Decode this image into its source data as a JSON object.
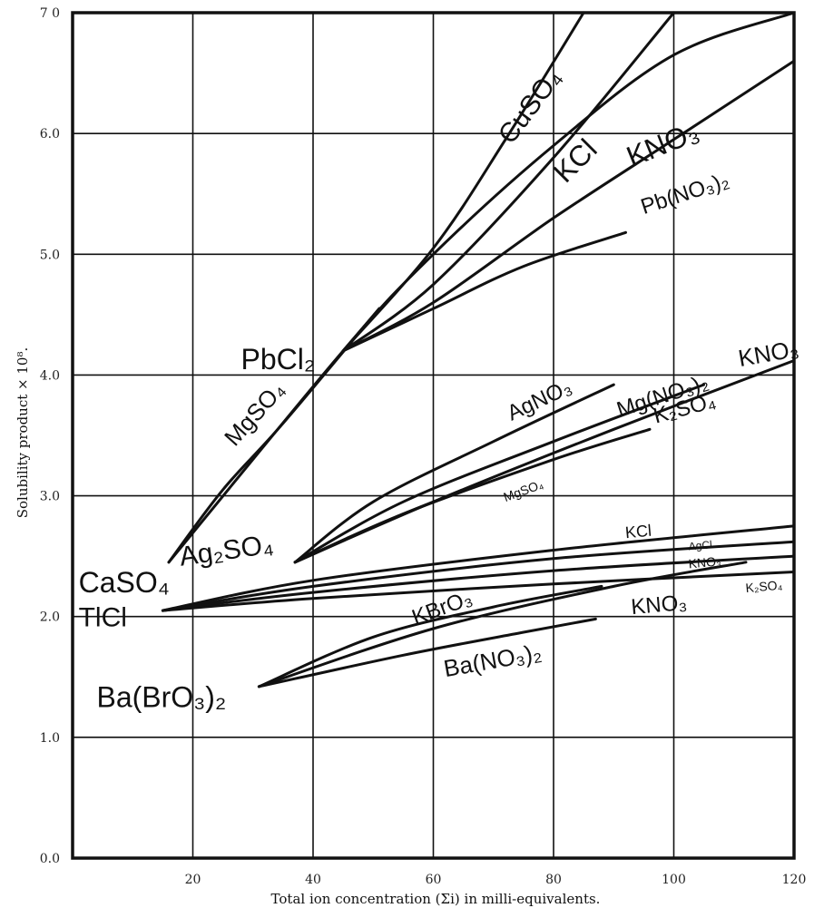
{
  "chart_data": {
    "type": "line",
    "title": "",
    "xlabel": "Total ion concentration (Σi) in milli-equivalents.",
    "ylabel": "Solubility product × 10⁸.",
    "xlim": [
      0,
      120
    ],
    "ylim": [
      0.0,
      7.0
    ],
    "x_ticks": [
      "20",
      "40",
      "60",
      "80",
      "100",
      "120"
    ],
    "x_tick_values": [
      20,
      40,
      60,
      80,
      100,
      120
    ],
    "y_ticks": [
      "0.0",
      "1.0",
      "2.0",
      "3.0",
      "4.0",
      "5.0",
      "6.0",
      "7 0"
    ],
    "y_tick_values": [
      0,
      1,
      2,
      3,
      4,
      5,
      6,
      7
    ],
    "grid": true,
    "groups": [
      {
        "name": "PbCl₂",
        "series": [
          {
            "name": "CuSO₄",
            "x": [
              45,
              60,
              72,
              85
            ],
            "y": [
              4.2,
              5.05,
              5.95,
              7.0
            ]
          },
          {
            "name": "KCl",
            "x": [
              45,
              60,
              80,
              100
            ],
            "y": [
              4.2,
              4.75,
              5.8,
              7.0
            ]
          },
          {
            "name": "KNO₃",
            "x": [
              45,
              60,
              80,
              100,
              120
            ],
            "y": [
              4.2,
              4.6,
              5.3,
              5.95,
              6.6
            ]
          },
          {
            "name": "Pb(NO₃)₂",
            "x": [
              45,
              60,
              75,
              92
            ],
            "y": [
              4.2,
              4.55,
              4.9,
              5.18
            ]
          },
          {
            "name": "MgSO₄",
            "x": [
              45,
              51
            ],
            "y": [
              4.2,
              4.55
            ]
          }
        ]
      },
      {
        "name": "CaSO₄",
        "series": [
          {
            "name": "MgSO₄",
            "x": [
              16,
              25,
              35,
              51
            ],
            "y": [
              2.45,
              3.05,
              3.6,
              4.55
            ]
          },
          {
            "name": "KNO₃",
            "x": [
              16,
              45,
              60,
              80,
              100,
              120
            ],
            "y": [
              2.45,
              4.2,
              5.0,
              5.9,
              6.65,
              7.0
            ]
          }
        ]
      },
      {
        "name": "Ag₂SO₄",
        "series": [
          {
            "name": "AgNO₃",
            "x": [
              37,
              50,
              70,
              90
            ],
            "y": [
              2.45,
              2.95,
              3.45,
              3.92
            ]
          },
          {
            "name": "Mg(NO₃)₂",
            "x": [
              37,
              55,
              80,
              105
            ],
            "y": [
              2.45,
              2.95,
              3.45,
              3.92
            ]
          },
          {
            "name": "KNO₃",
            "x": [
              37,
              60,
              90,
              120
            ],
            "y": [
              2.45,
              2.95,
              3.55,
              4.12
            ]
          },
          {
            "name": "K₂SO₄",
            "x": [
              37,
              55,
              80,
              96
            ],
            "y": [
              2.45,
              2.85,
              3.3,
              3.55
            ]
          },
          {
            "name": "MgSO₄",
            "x": [
              37,
              55,
              68
            ],
            "y": [
              2.45,
              2.85,
              3.1
            ]
          }
        ]
      },
      {
        "name": "TlCl",
        "series": [
          {
            "name": "KCl",
            "x": [
              15,
              40,
              80,
              120
            ],
            "y": [
              2.05,
              2.3,
              2.55,
              2.75
            ]
          },
          {
            "name": "AgCl",
            "x": [
              15,
              40,
              80,
              120
            ],
            "y": [
              2.05,
              2.25,
              2.48,
              2.62
            ]
          },
          {
            "name": "KNO₃",
            "x": [
              15,
              40,
              80,
              120
            ],
            "y": [
              2.05,
              2.2,
              2.38,
              2.5
            ]
          },
          {
            "name": "K₂SO₄",
            "x": [
              15,
              40,
              80,
              120
            ],
            "y": [
              2.05,
              2.15,
              2.27,
              2.37
            ]
          }
        ]
      },
      {
        "name": "Ba(BrO₃)₂",
        "series": [
          {
            "name": "KBrO₃",
            "x": [
              31,
              50,
              70,
              88
            ],
            "y": [
              1.42,
              1.83,
              2.08,
              2.25
            ]
          },
          {
            "name": "KNO₃",
            "x": [
              31,
              60,
              90,
              112
            ],
            "y": [
              1.42,
              1.9,
              2.25,
              2.45
            ]
          },
          {
            "name": "Ba(NO₃)₂",
            "x": [
              31,
              55,
              75,
              87
            ],
            "y": [
              1.42,
              1.68,
              1.87,
              1.98
            ]
          }
        ]
      }
    ],
    "labels": [
      {
        "text": "CuSO₄",
        "x": 73,
        "y": 5.9,
        "size": 30,
        "rot": -53
      },
      {
        "text": "KCl",
        "x": 82,
        "y": 5.58,
        "size": 32,
        "rot": -45
      },
      {
        "text": "KNO₃",
        "x": 93,
        "y": 5.72,
        "size": 32,
        "rot": -22
      },
      {
        "text": "Pb(NO₃)₂",
        "x": 95,
        "y": 5.33,
        "size": 24,
        "rot": -18
      },
      {
        "text": "PbCl₂",
        "x": 28,
        "y": 4.05,
        "size": 32,
        "rot": 0
      },
      {
        "text": "MgSO₄",
        "x": 27,
        "y": 3.4,
        "size": 26,
        "rot": -48
      },
      {
        "text": "AgNO₃",
        "x": 73,
        "y": 3.62,
        "size": 24,
        "rot": -25
      },
      {
        "text": "Mg(NO₃)₂",
        "x": 91,
        "y": 3.65,
        "size": 24,
        "rot": -18
      },
      {
        "text": "KNO₃",
        "x": 111,
        "y": 4.07,
        "size": 26,
        "rot": -10
      },
      {
        "text": "K₂SO₄",
        "x": 97,
        "y": 3.6,
        "size": 24,
        "rot": -15
      },
      {
        "text": "MgSO₄",
        "x": 72,
        "y": 2.95,
        "size": 14,
        "rot": -20
      },
      {
        "text": "CaSO₄",
        "x": 1,
        "y": 2.2,
        "size": 32,
        "rot": 0
      },
      {
        "text": "Ag₂SO₄",
        "x": 18,
        "y": 2.42,
        "size": 30,
        "rot": -8
      },
      {
        "text": "TlCl",
        "x": 1,
        "y": 1.92,
        "size": 30,
        "rot": 0
      },
      {
        "text": "KCl",
        "x": 92,
        "y": 2.65,
        "size": 18,
        "rot": -5
      },
      {
        "text": "AgCl",
        "x": 102.5,
        "y": 2.55,
        "size": 12,
        "rot": -5
      },
      {
        "text": "KNO₃",
        "x": 102.5,
        "y": 2.4,
        "size": 14,
        "rot": -5
      },
      {
        "text": "K₂SO₄",
        "x": 112,
        "y": 2.2,
        "size": 14,
        "rot": -5
      },
      {
        "text": "KBrO₃",
        "x": 57,
        "y": 1.93,
        "size": 24,
        "rot": -20
      },
      {
        "text": "KNO₃",
        "x": 93,
        "y": 2.02,
        "size": 24,
        "rot": -5
      },
      {
        "text": "Ba(NO₃)₂",
        "x": 62,
        "y": 1.5,
        "size": 26,
        "rot": -10
      },
      {
        "text": "Ba(BrO₃)₂",
        "x": 4,
        "y": 1.25,
        "size": 32,
        "rot": 0
      }
    ]
  }
}
